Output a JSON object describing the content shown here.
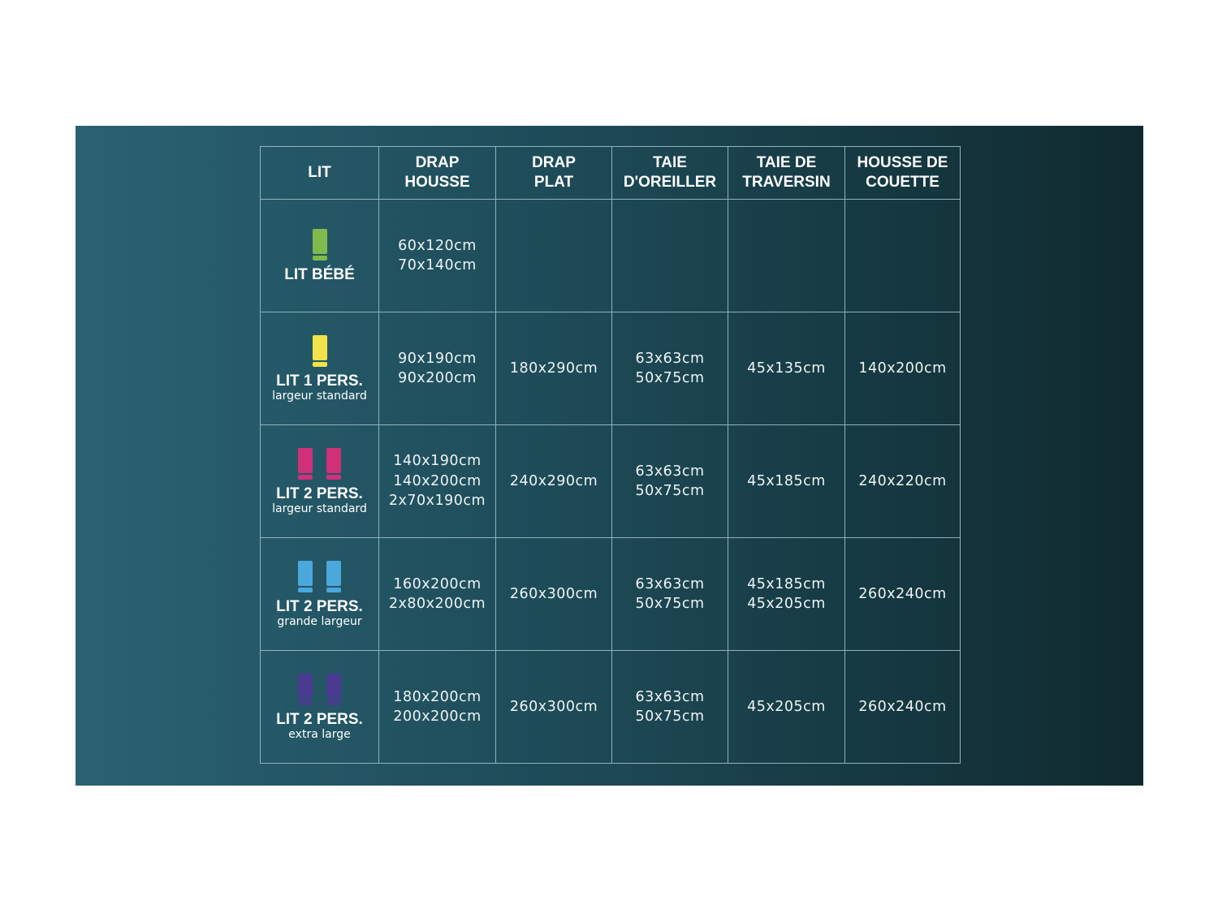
{
  "headers": [
    [
      "LIT"
    ],
    [
      "DRAP",
      "HOUSSE"
    ],
    [
      "DRAP",
      "PLAT"
    ],
    [
      "TAIE",
      "D'OREILLER"
    ],
    [
      "TAIE DE",
      "TRAVERSIN"
    ],
    [
      "HOUSSE DE",
      "COUETTE"
    ]
  ],
  "rows": [
    {
      "name": "LIT BÉBÉ",
      "sub": "",
      "icon_color": "#7fba4f",
      "icon_count": 1,
      "cells": [
        [
          "60x120cm",
          "70x140cm"
        ],
        [],
        [],
        [],
        []
      ]
    },
    {
      "name": "LIT 1 PERS.",
      "sub": "largeur standard",
      "icon_color": "#f2e34a",
      "icon_count": 1,
      "cells": [
        [
          "90x190cm",
          "90x200cm"
        ],
        [
          "180x290cm"
        ],
        [
          "63x63cm",
          "50x75cm"
        ],
        [
          "45x135cm"
        ],
        [
          "140x200cm"
        ]
      ]
    },
    {
      "name": "LIT 2 PERS.",
      "sub": "largeur standard",
      "icon_color": "#d0307a",
      "icon_count": 2,
      "cells": [
        [
          "140x190cm",
          "140x200cm",
          "2x70x190cm"
        ],
        [
          "240x290cm"
        ],
        [
          "63x63cm",
          "50x75cm"
        ],
        [
          "45x185cm"
        ],
        [
          "240x220cm"
        ]
      ]
    },
    {
      "name": "LIT 2 PERS.",
      "sub": "grande largeur",
      "icon_color": "#4aa8dc",
      "icon_count": 2,
      "cells": [
        [
          "160x200cm",
          "2x80x200cm"
        ],
        [
          "260x300cm"
        ],
        [
          "63x63cm",
          "50x75cm"
        ],
        [
          "45x185cm",
          "45x205cm"
        ],
        [
          "260x240cm"
        ]
      ]
    },
    {
      "name": "LIT 2 PERS.",
      "sub": "extra large",
      "icon_color": "#4a3a90",
      "icon_count": 2,
      "cells": [
        [
          "180x200cm",
          "200x200cm"
        ],
        [
          "260x300cm"
        ],
        [
          "63x63cm",
          "50x75cm"
        ],
        [
          "45x205cm"
        ],
        [
          "260x240cm"
        ]
      ]
    }
  ]
}
